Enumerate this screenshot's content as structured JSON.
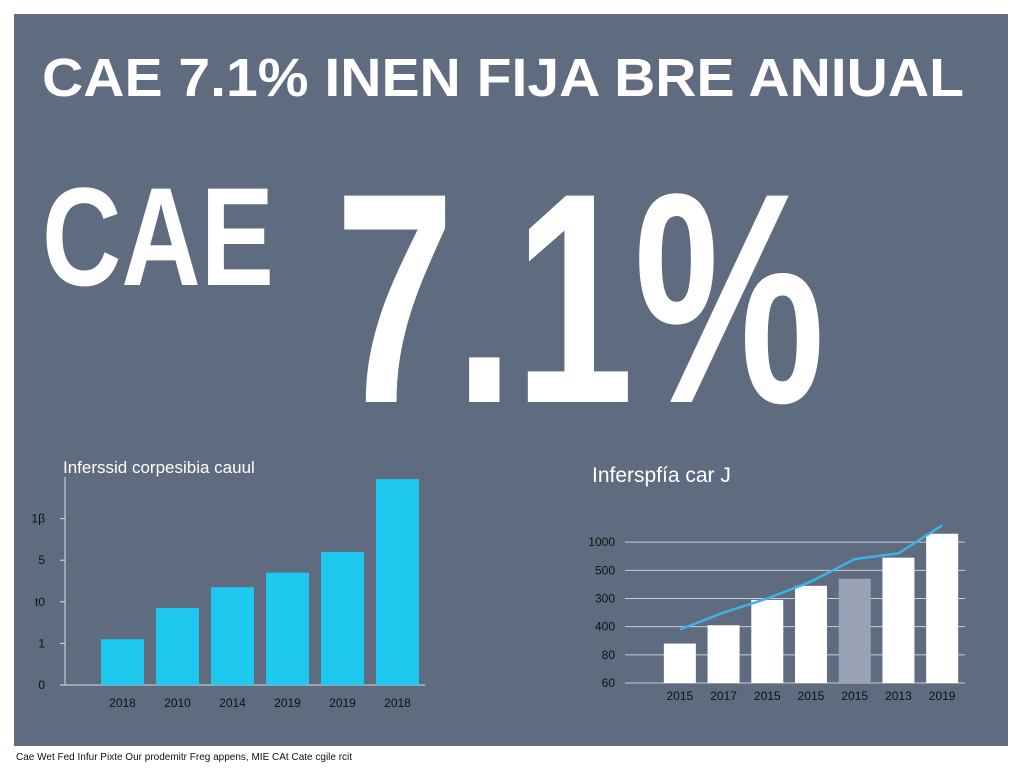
{
  "header": {
    "title": "CAE 7.1% INEN FIJA BRE ANIUAL",
    "big_left": "CAE",
    "big_right": "7.1%"
  },
  "footer": "Cae Wet Fed Infur Pixte Our prodemitr Freg appens, MIE CAt Cate cgile rcit",
  "chart_data": [
    {
      "type": "bar",
      "title": "Inferssid corpesibia cauul",
      "categories": [
        "2018",
        "2010",
        "2014",
        "2019",
        "2019",
        "2018"
      ],
      "values": [
        1.1,
        1.85,
        2.35,
        2.7,
        3.2,
        4.95
      ],
      "color": "#1ec8ef",
      "ylim": [
        0,
        5
      ],
      "yticks": [
        0,
        1,
        {
          "value": 2,
          "label": "t0"
        },
        {
          "value": 3,
          "label": "5"
        },
        {
          "value": 4,
          "label": "1β"
        }
      ],
      "grid": false
    },
    {
      "type": "bar",
      "title": "Inferspfía car J",
      "categories": [
        "2015",
        "2017",
        "2015",
        "2015",
        "2015",
        "2013",
        "2019"
      ],
      "values": [
        1.4,
        2.05,
        2.95,
        3.45,
        3.7,
        4.45,
        5.3
      ],
      "colors": [
        "#ffffff",
        "#ffffff",
        "#ffffff",
        "#ffffff",
        "#9aa3b5",
        "#ffffff",
        "#ffffff"
      ],
      "line": {
        "values": [
          1.9,
          2.5,
          3.0,
          3.6,
          4.4,
          4.6,
          5.6
        ],
        "color": "#3bb3e6"
      },
      "ylim": [
        0,
        6
      ],
      "yticks": [
        {
          "value": 0,
          "label": "60"
        },
        {
          "value": 1,
          "label": "80"
        },
        {
          "value": 2,
          "label": "400"
        },
        {
          "value": 3,
          "label": "300"
        },
        {
          "value": 4,
          "label": "500"
        },
        {
          "value": 5,
          "label": "1000"
        }
      ],
      "grid": true
    }
  ]
}
